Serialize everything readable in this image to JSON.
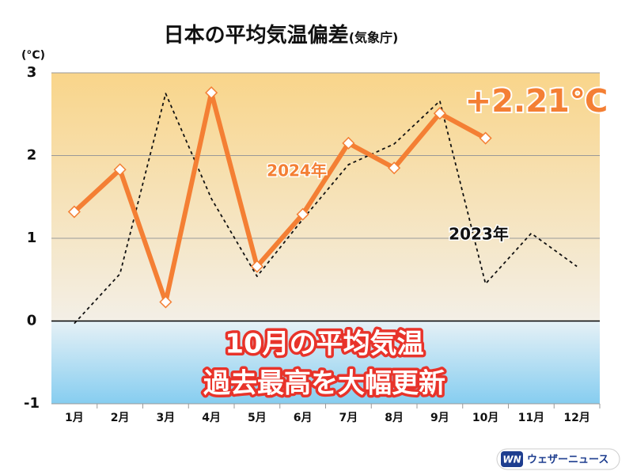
{
  "chart_data": {
    "type": "line",
    "title": "日本の平均気温偏差",
    "source": "(気象庁)",
    "y_unit": "(°C)",
    "categories": [
      "1月",
      "2月",
      "3月",
      "4月",
      "5月",
      "6月",
      "7月",
      "8月",
      "9月",
      "10月",
      "11月",
      "12月"
    ],
    "series": [
      {
        "name": "2023年",
        "color": "#111111",
        "style": "dashed",
        "values": [
          -0.03,
          0.57,
          2.75,
          1.48,
          0.54,
          1.23,
          1.89,
          2.14,
          2.66,
          0.45,
          1.06,
          0.66
        ]
      },
      {
        "name": "2024年",
        "color": "#f47f34",
        "style": "solid",
        "values": [
          1.32,
          1.83,
          0.23,
          2.76,
          0.66,
          1.29,
          2.15,
          1.85,
          2.51,
          2.21,
          null,
          null
        ]
      }
    ],
    "ylim": [
      -1,
      3
    ],
    "yticks": [
      -1,
      0,
      1,
      2,
      3
    ],
    "grid": true,
    "annotations": [
      "+2.21℃",
      "10月の平均気温",
      "過去最高を大幅更新"
    ],
    "logo": {
      "mark": "WN",
      "text": "ウェザーニュース"
    }
  }
}
